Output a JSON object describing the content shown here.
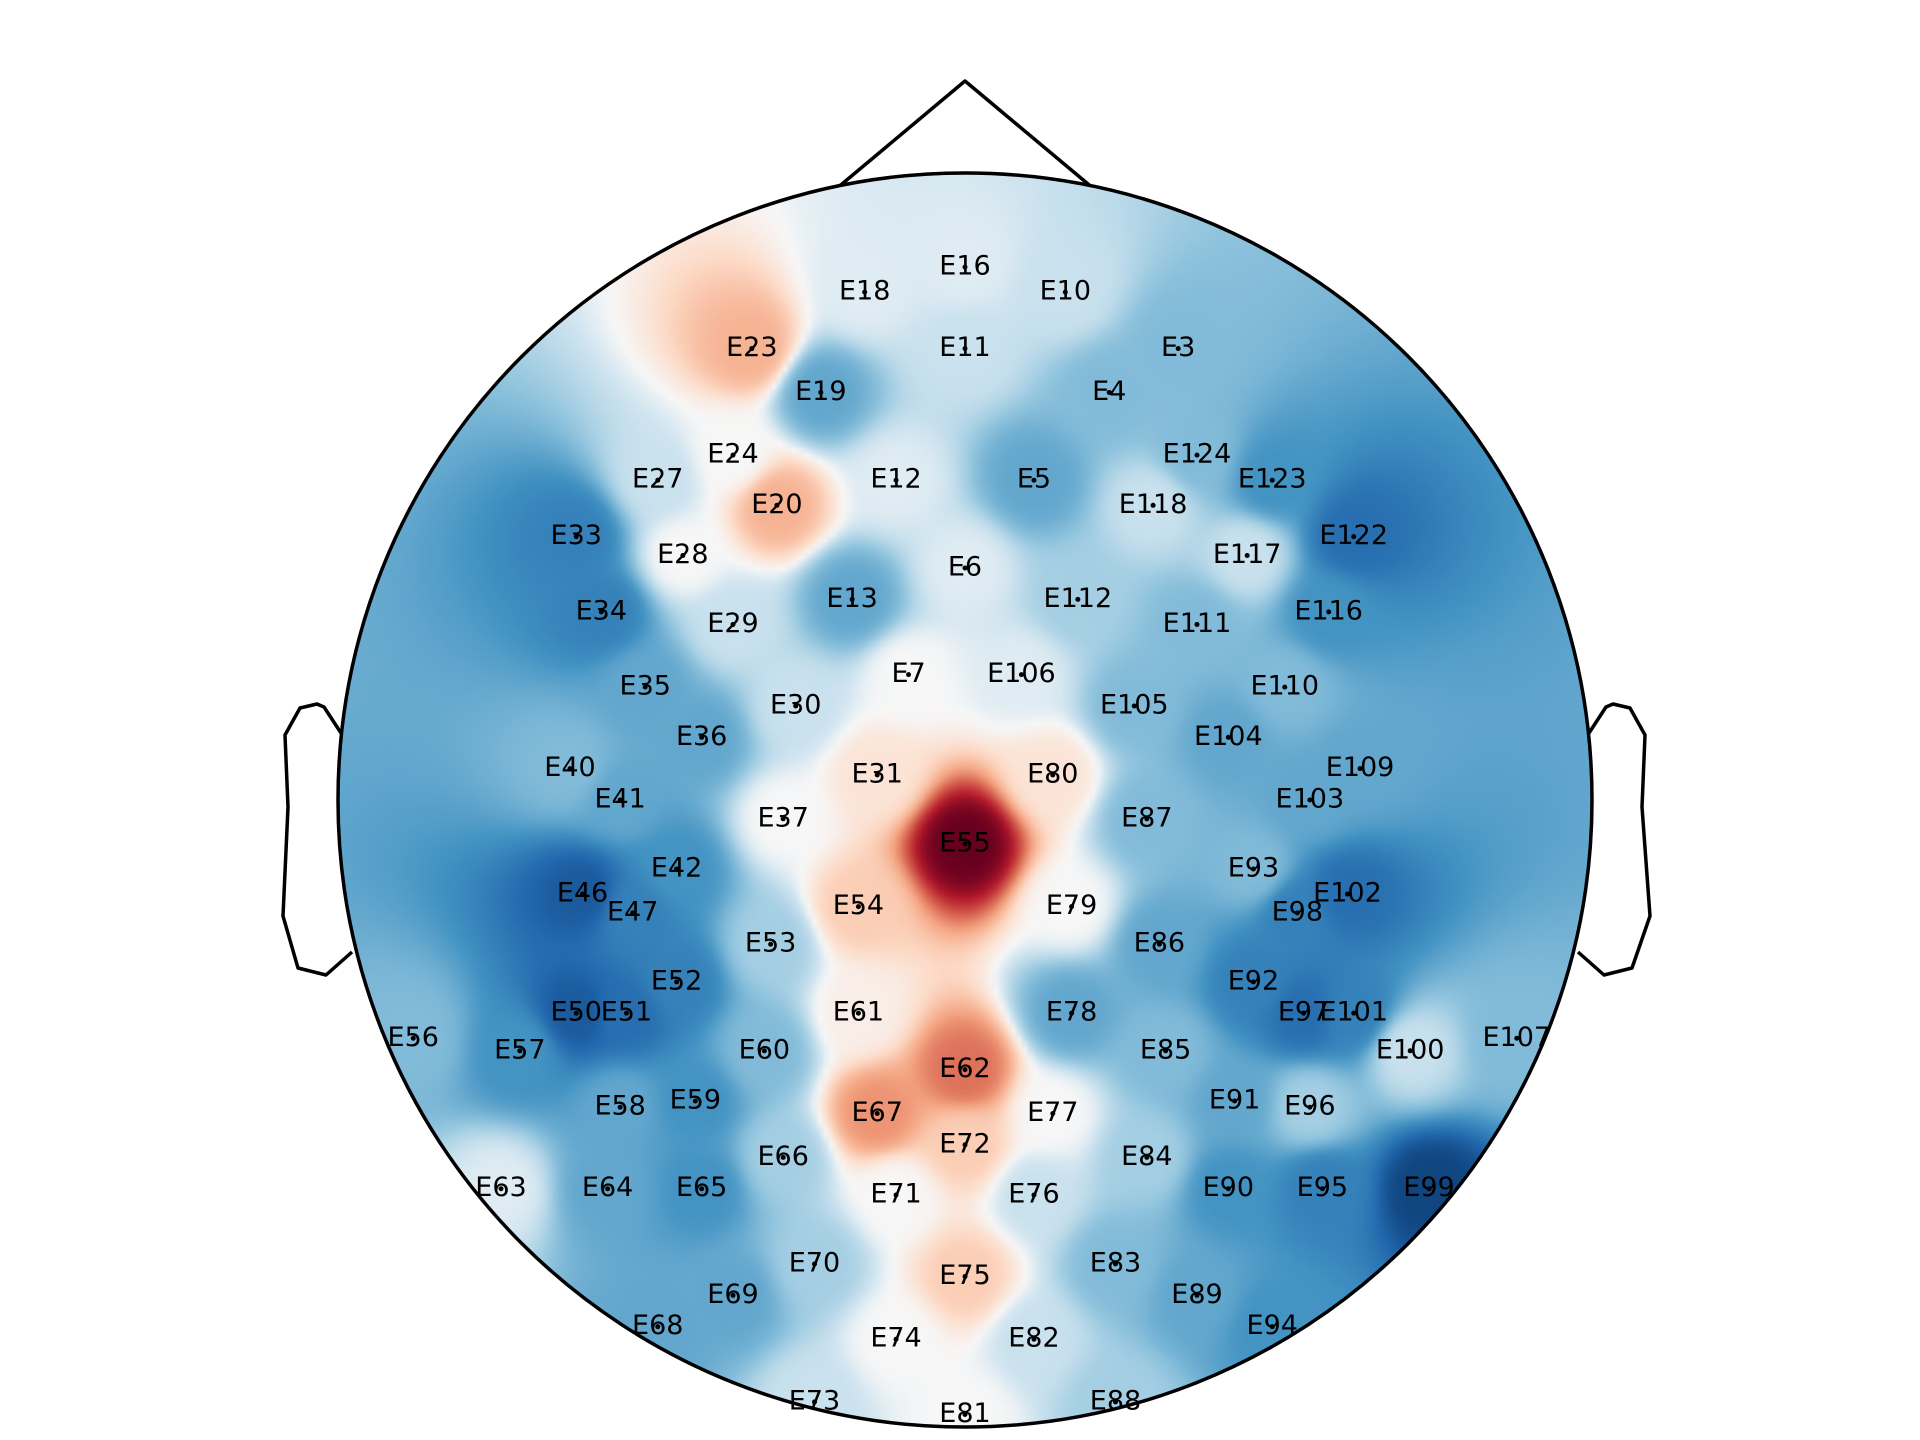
{
  "chart_data": {
    "type": "heatmap",
    "title": "",
    "colormap": "RdBu_r",
    "colors": {
      "negative": "#2166ac",
      "neutral": "#f7f7f7",
      "positive": "#b2182b",
      "strong_positive": "#67001f"
    },
    "value_range": [
      -1,
      1
    ],
    "colorbar": false,
    "sensors": [
      {
        "name": "E16",
        "x": 0.0,
        "y": 0.85,
        "v": -0.05
      },
      {
        "name": "E18",
        "x": -0.16,
        "y": 0.81,
        "v": -0.05
      },
      {
        "name": "E10",
        "x": 0.16,
        "y": 0.81,
        "v": -0.1
      },
      {
        "name": "E23",
        "x": -0.34,
        "y": 0.72,
        "v": 0.3
      },
      {
        "name": "E11",
        "x": 0.0,
        "y": 0.72,
        "v": -0.1
      },
      {
        "name": "E3",
        "x": 0.34,
        "y": 0.72,
        "v": -0.3
      },
      {
        "name": "E19",
        "x": -0.23,
        "y": 0.65,
        "v": -0.4
      },
      {
        "name": "E4",
        "x": 0.23,
        "y": 0.65,
        "v": -0.3
      },
      {
        "name": "E24",
        "x": -0.37,
        "y": 0.55,
        "v": 0.0
      },
      {
        "name": "E124",
        "x": 0.37,
        "y": 0.55,
        "v": -0.3
      },
      {
        "name": "E27",
        "x": -0.49,
        "y": 0.51,
        "v": -0.1
      },
      {
        "name": "E12",
        "x": -0.11,
        "y": 0.51,
        "v": -0.05
      },
      {
        "name": "E5",
        "x": 0.11,
        "y": 0.51,
        "v": -0.4
      },
      {
        "name": "E123",
        "x": 0.49,
        "y": 0.51,
        "v": -0.5
      },
      {
        "name": "E20",
        "x": -0.3,
        "y": 0.47,
        "v": 0.3
      },
      {
        "name": "E118",
        "x": 0.3,
        "y": 0.47,
        "v": -0.1
      },
      {
        "name": "E33",
        "x": -0.62,
        "y": 0.42,
        "v": -0.6
      },
      {
        "name": "E122",
        "x": 0.62,
        "y": 0.42,
        "v": -0.7
      },
      {
        "name": "E28",
        "x": -0.45,
        "y": 0.39,
        "v": 0.0
      },
      {
        "name": "E117",
        "x": 0.45,
        "y": 0.39,
        "v": -0.1
      },
      {
        "name": "E6",
        "x": 0.0,
        "y": 0.37,
        "v": -0.05
      },
      {
        "name": "E13",
        "x": -0.18,
        "y": 0.32,
        "v": -0.4
      },
      {
        "name": "E112",
        "x": 0.18,
        "y": 0.32,
        "v": -0.2
      },
      {
        "name": "E34",
        "x": -0.58,
        "y": 0.3,
        "v": -0.6
      },
      {
        "name": "E116",
        "x": 0.58,
        "y": 0.3,
        "v": -0.5
      },
      {
        "name": "E29",
        "x": -0.37,
        "y": 0.28,
        "v": -0.1
      },
      {
        "name": "E111",
        "x": 0.37,
        "y": 0.28,
        "v": -0.3
      },
      {
        "name": "E7",
        "x": -0.09,
        "y": 0.2,
        "v": 0.0
      },
      {
        "name": "E106",
        "x": 0.09,
        "y": 0.2,
        "v": -0.05
      },
      {
        "name": "E35",
        "x": -0.51,
        "y": 0.18,
        "v": -0.4
      },
      {
        "name": "E110",
        "x": 0.51,
        "y": 0.18,
        "v": -0.3
      },
      {
        "name": "E30",
        "x": -0.27,
        "y": 0.15,
        "v": -0.1
      },
      {
        "name": "E105",
        "x": 0.27,
        "y": 0.15,
        "v": -0.3
      },
      {
        "name": "E36",
        "x": -0.42,
        "y": 0.1,
        "v": -0.4
      },
      {
        "name": "E104",
        "x": 0.42,
        "y": 0.1,
        "v": -0.4
      },
      {
        "name": "E40",
        "x": -0.63,
        "y": 0.05,
        "v": -0.3
      },
      {
        "name": "E109",
        "x": 0.63,
        "y": 0.05,
        "v": -0.4
      },
      {
        "name": "E31",
        "x": -0.14,
        "y": 0.04,
        "v": 0.1
      },
      {
        "name": "E80",
        "x": 0.14,
        "y": 0.04,
        "v": 0.1
      },
      {
        "name": "E41",
        "x": -0.55,
        "y": 0.0,
        "v": -0.4
      },
      {
        "name": "E103",
        "x": 0.55,
        "y": 0.0,
        "v": -0.4
      },
      {
        "name": "E37",
        "x": -0.29,
        "y": -0.03,
        "v": 0.0
      },
      {
        "name": "E87",
        "x": 0.29,
        "y": -0.03,
        "v": -0.3
      },
      {
        "name": "E55",
        "x": 0.0,
        "y": -0.07,
        "v": 1.0
      },
      {
        "name": "E42",
        "x": -0.46,
        "y": -0.11,
        "v": -0.5
      },
      {
        "name": "E93",
        "x": 0.46,
        "y": -0.11,
        "v": -0.3
      },
      {
        "name": "E46",
        "x": -0.61,
        "y": -0.15,
        "v": -0.8
      },
      {
        "name": "E102",
        "x": 0.61,
        "y": -0.15,
        "v": -0.7
      },
      {
        "name": "E54",
        "x": -0.17,
        "y": -0.17,
        "v": 0.2
      },
      {
        "name": "E79",
        "x": 0.17,
        "y": -0.17,
        "v": 0.0
      },
      {
        "name": "E47",
        "x": -0.53,
        "y": -0.18,
        "v": -0.6
      },
      {
        "name": "E98",
        "x": 0.53,
        "y": -0.18,
        "v": -0.6
      },
      {
        "name": "E53",
        "x": -0.31,
        "y": -0.23,
        "v": -0.2
      },
      {
        "name": "E86",
        "x": 0.31,
        "y": -0.23,
        "v": -0.4
      },
      {
        "name": "E52",
        "x": -0.46,
        "y": -0.29,
        "v": -0.6
      },
      {
        "name": "E92",
        "x": 0.46,
        "y": -0.29,
        "v": -0.6
      },
      {
        "name": "E61",
        "x": -0.17,
        "y": -0.34,
        "v": 0.05
      },
      {
        "name": "E78",
        "x": 0.17,
        "y": -0.34,
        "v": -0.4
      },
      {
        "name": "E50",
        "x": -0.62,
        "y": -0.34,
        "v": -0.8
      },
      {
        "name": "E51",
        "x": -0.54,
        "y": -0.34,
        "v": -0.7
      },
      {
        "name": "E97",
        "x": 0.54,
        "y": -0.34,
        "v": -0.7
      },
      {
        "name": "E101",
        "x": 0.62,
        "y": -0.34,
        "v": -0.6
      },
      {
        "name": "E56",
        "x": -0.88,
        "y": -0.38,
        "v": -0.3
      },
      {
        "name": "E107",
        "x": 0.88,
        "y": -0.38,
        "v": -0.3
      },
      {
        "name": "E57",
        "x": -0.71,
        "y": -0.4,
        "v": -0.5
      },
      {
        "name": "E60",
        "x": -0.32,
        "y": -0.4,
        "v": -0.3
      },
      {
        "name": "E85",
        "x": 0.32,
        "y": -0.4,
        "v": -0.3
      },
      {
        "name": "E100",
        "x": 0.71,
        "y": -0.4,
        "v": -0.1
      },
      {
        "name": "E62",
        "x": 0.0,
        "y": -0.43,
        "v": 0.5
      },
      {
        "name": "E58",
        "x": -0.55,
        "y": -0.49,
        "v": -0.4
      },
      {
        "name": "E59",
        "x": -0.43,
        "y": -0.48,
        "v": -0.5
      },
      {
        "name": "E91",
        "x": 0.43,
        "y": -0.48,
        "v": -0.4
      },
      {
        "name": "E96",
        "x": 0.55,
        "y": -0.49,
        "v": -0.2
      },
      {
        "name": "E67",
        "x": -0.14,
        "y": -0.5,
        "v": 0.4
      },
      {
        "name": "E77",
        "x": 0.14,
        "y": -0.5,
        "v": 0.0
      },
      {
        "name": "E72",
        "x": 0.0,
        "y": -0.55,
        "v": 0.2
      },
      {
        "name": "E66",
        "x": -0.29,
        "y": -0.57,
        "v": -0.2
      },
      {
        "name": "E84",
        "x": 0.29,
        "y": -0.57,
        "v": -0.2
      },
      {
        "name": "E63",
        "x": -0.74,
        "y": -0.62,
        "v": -0.05
      },
      {
        "name": "E64",
        "x": -0.57,
        "y": -0.62,
        "v": -0.4
      },
      {
        "name": "E65",
        "x": -0.42,
        "y": -0.62,
        "v": -0.5
      },
      {
        "name": "E71",
        "x": -0.11,
        "y": -0.63,
        "v": 0.0
      },
      {
        "name": "E76",
        "x": 0.11,
        "y": -0.63,
        "v": -0.1
      },
      {
        "name": "E90",
        "x": 0.42,
        "y": -0.62,
        "v": -0.5
      },
      {
        "name": "E95",
        "x": 0.57,
        "y": -0.62,
        "v": -0.6
      },
      {
        "name": "E99",
        "x": 0.74,
        "y": -0.62,
        "v": -0.9
      },
      {
        "name": "E70",
        "x": -0.24,
        "y": -0.74,
        "v": -0.2
      },
      {
        "name": "E83",
        "x": 0.24,
        "y": -0.74,
        "v": -0.3
      },
      {
        "name": "E75",
        "x": 0.0,
        "y": -0.76,
        "v": 0.2
      },
      {
        "name": "E69",
        "x": -0.37,
        "y": -0.79,
        "v": -0.4
      },
      {
        "name": "E89",
        "x": 0.37,
        "y": -0.79,
        "v": -0.4
      },
      {
        "name": "E68",
        "x": -0.49,
        "y": -0.84,
        "v": -0.4
      },
      {
        "name": "E94",
        "x": 0.49,
        "y": -0.84,
        "v": -0.5
      },
      {
        "name": "E74",
        "x": -0.11,
        "y": -0.86,
        "v": 0.0
      },
      {
        "name": "E82",
        "x": 0.11,
        "y": -0.86,
        "v": -0.1
      },
      {
        "name": "E73",
        "x": -0.24,
        "y": -0.96,
        "v": -0.1
      },
      {
        "name": "E88",
        "x": 0.24,
        "y": -0.96,
        "v": -0.2
      },
      {
        "name": "E81",
        "x": 0.0,
        "y": -0.98,
        "v": 0.0
      }
    ]
  }
}
